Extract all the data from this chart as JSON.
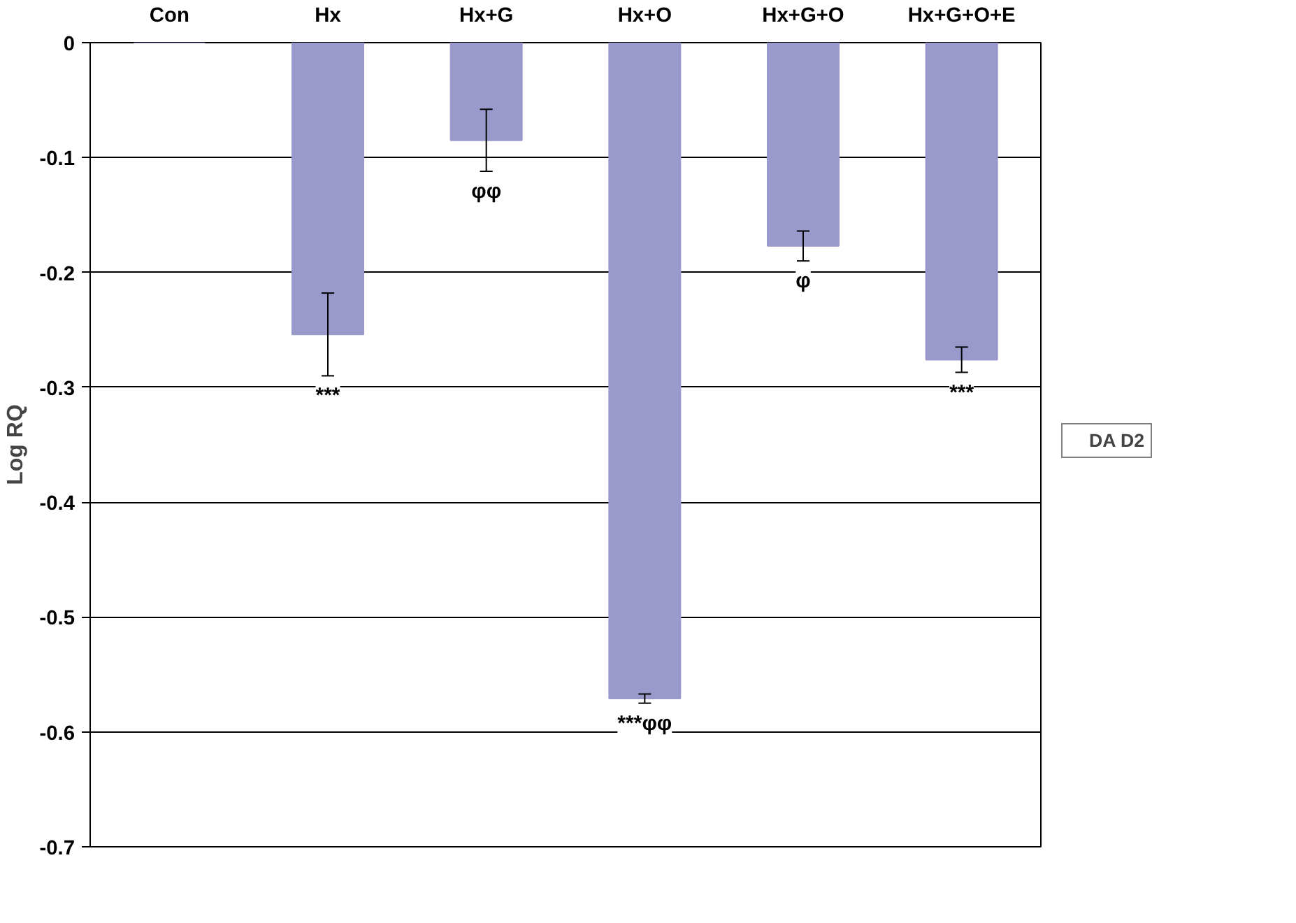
{
  "chart_data": {
    "type": "bar",
    "ylabel": "Log RQ",
    "categories": [
      "Con",
      "Hx",
      "Hx+G",
      "Hx+O",
      "Hx+G+O",
      "Hx+G+O+E"
    ],
    "series": [
      {
        "name": "DA D2",
        "color": "#9999cc",
        "values": [
          0,
          -0.254,
          -0.085,
          -0.571,
          -0.177,
          -0.276
        ],
        "errors": [
          null,
          0.036,
          0.027,
          0.004,
          0.013,
          0.011
        ]
      }
    ],
    "ylim": [
      -0.7,
      0
    ],
    "yticks": [
      0,
      -0.1,
      -0.2,
      -0.3,
      -0.4,
      -0.5,
      -0.6,
      -0.7
    ],
    "grid": "y",
    "legend": "right",
    "annotations": [
      "***",
      "φφ",
      "***φφ",
      "φ",
      "***"
    ]
  }
}
